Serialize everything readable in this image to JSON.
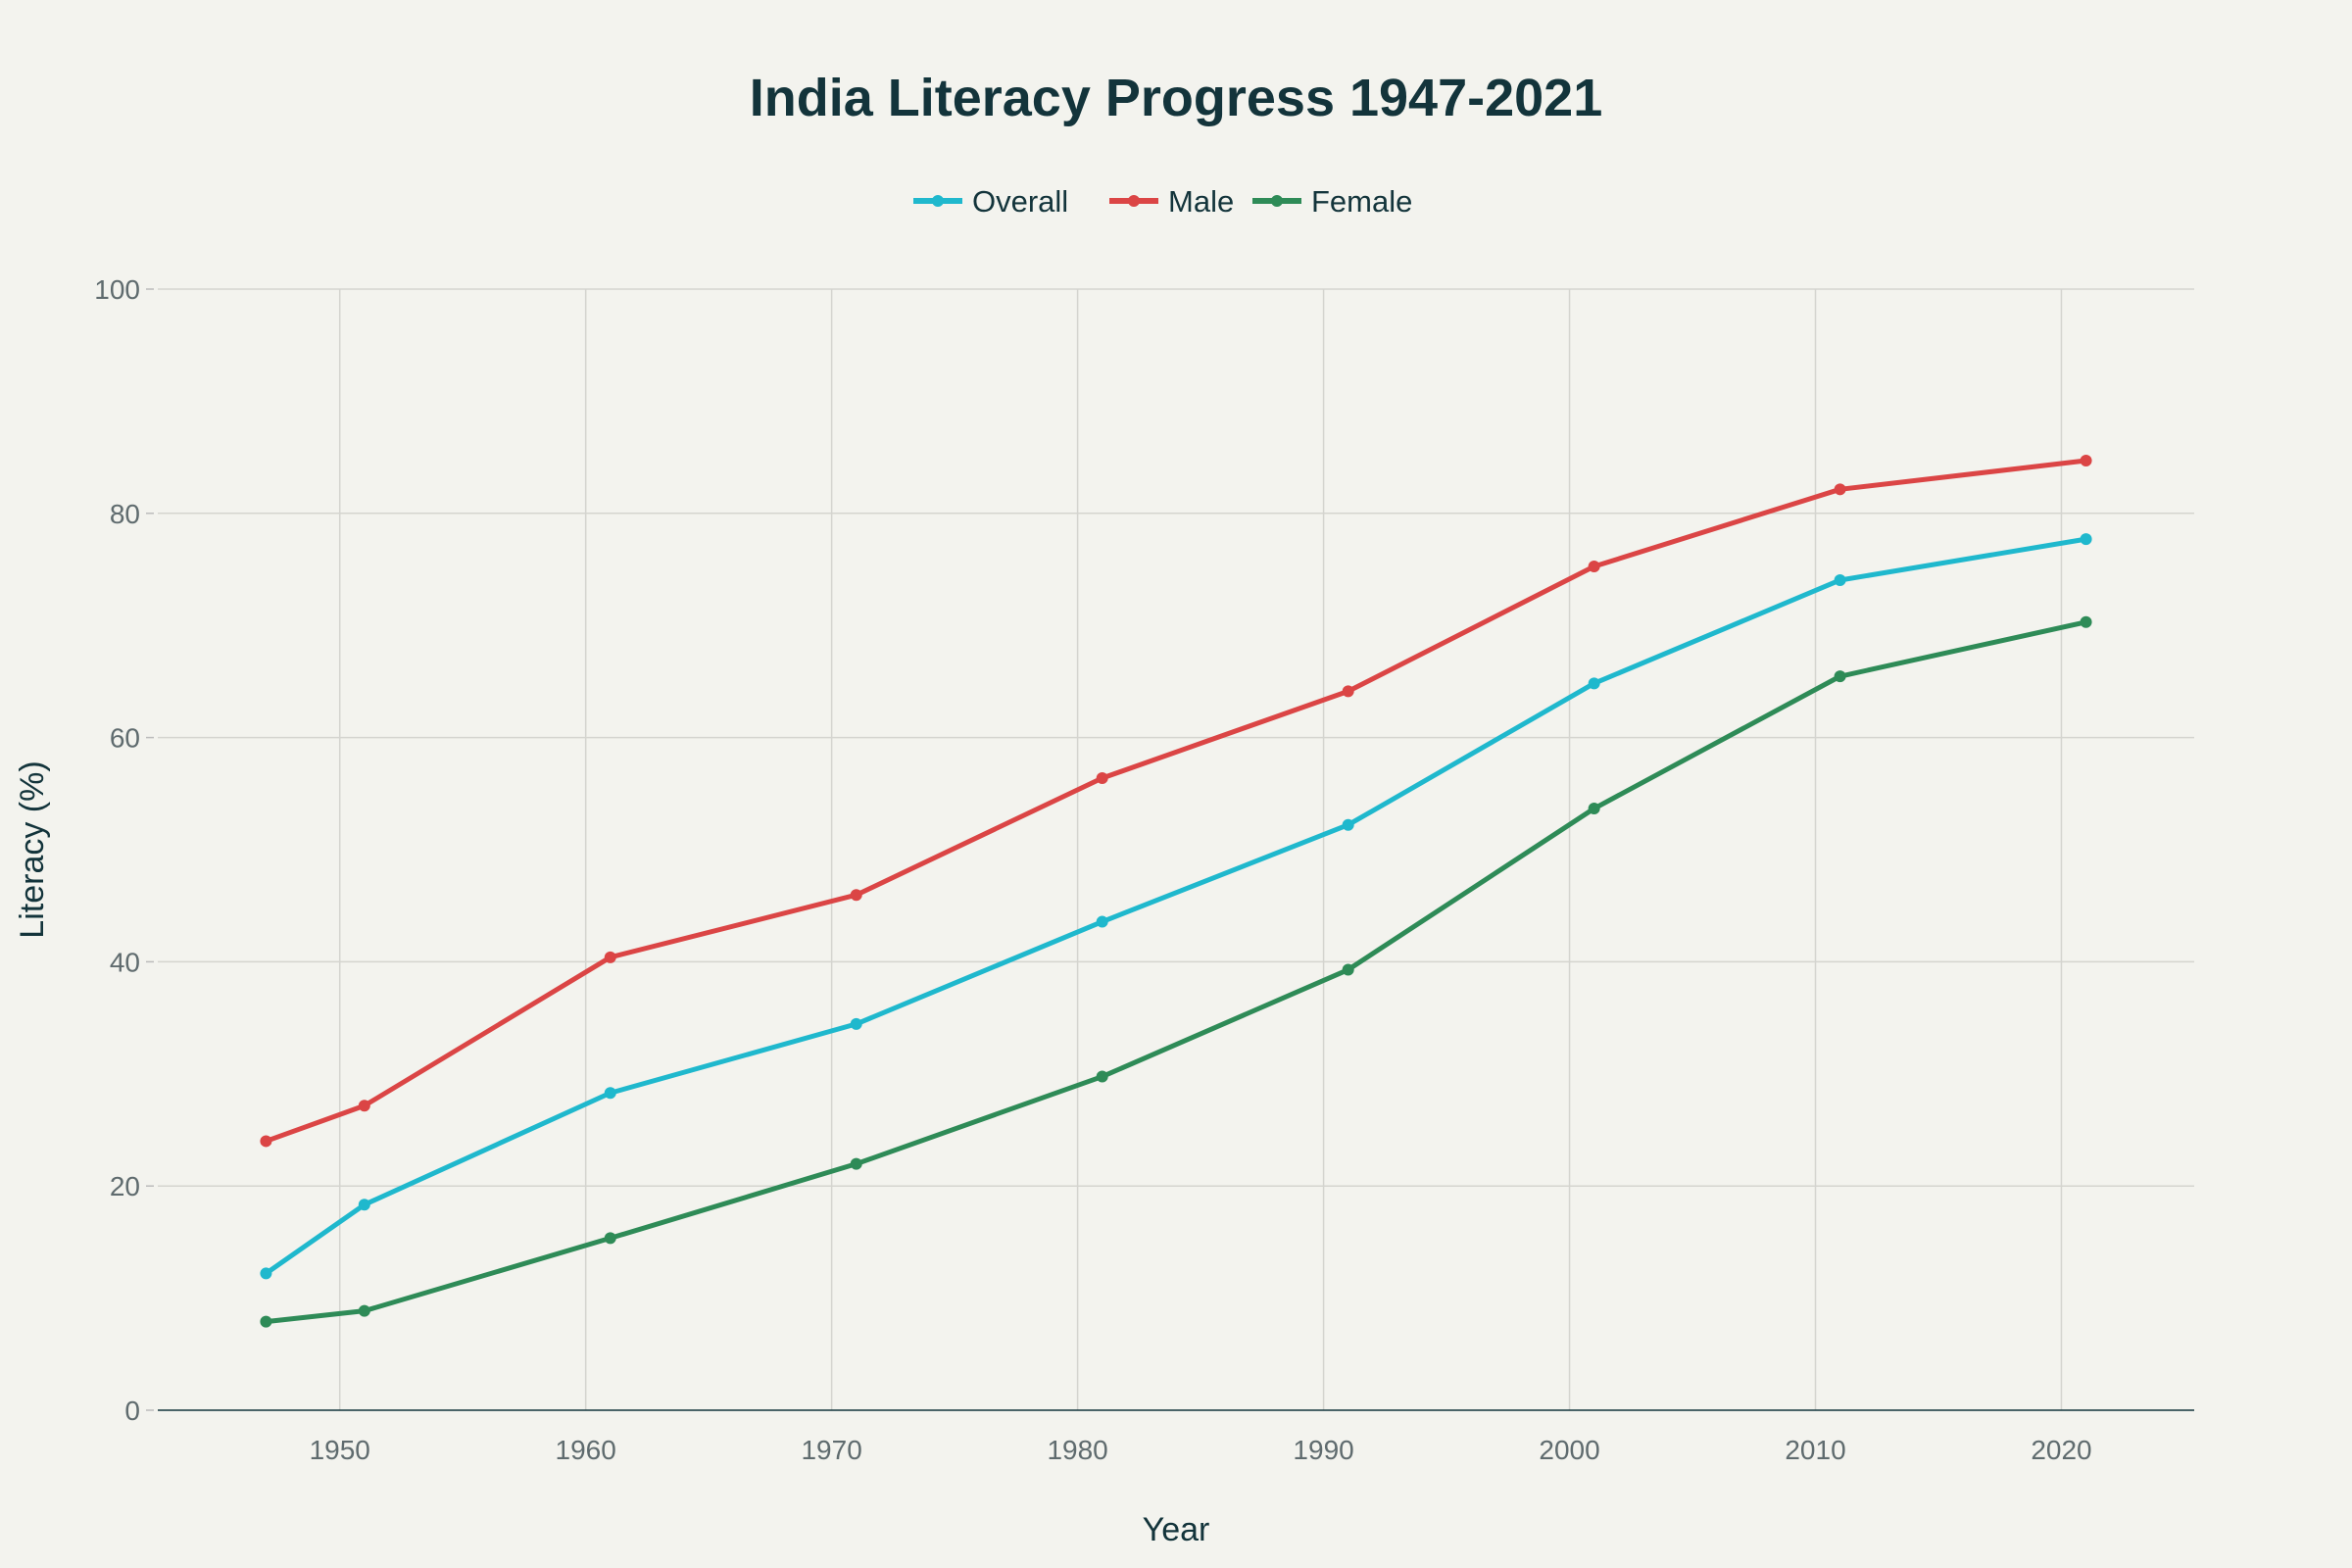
{
  "chart_data": {
    "type": "line",
    "title": "India Literacy Progress 1947-2021",
    "xlabel": "Year",
    "ylabel": "Literacy (%)",
    "x": [
      1947,
      1951,
      1961,
      1971,
      1981,
      1991,
      2001,
      2011,
      2021
    ],
    "series": [
      {
        "name": "Overall",
        "color": "#1FB8CD",
        "values": [
          12.2,
          18.33,
          28.3,
          34.45,
          43.57,
          52.21,
          64.83,
          74.04,
          77.7
        ]
      },
      {
        "name": "Male",
        "color": "#DB4545",
        "values": [
          24.0,
          27.16,
          40.4,
          45.96,
          56.38,
          64.13,
          75.26,
          82.14,
          84.7
        ]
      },
      {
        "name": "Female",
        "color": "#2E8B57",
        "values": [
          7.9,
          8.86,
          15.35,
          21.97,
          29.76,
          39.29,
          53.67,
          65.46,
          70.3
        ]
      }
    ],
    "xticks": [
      "1950",
      "1960",
      "1970",
      "1980",
      "1990",
      "2000",
      "2010",
      "2020"
    ],
    "yticks": [
      "0",
      "20",
      "40",
      "60",
      "80",
      "100"
    ],
    "xlim": [
      1942.6,
      2025.4
    ],
    "ylim": [
      0,
      100
    ],
    "grid": true,
    "legend": "top-center",
    "background": "#F3F3EE"
  }
}
